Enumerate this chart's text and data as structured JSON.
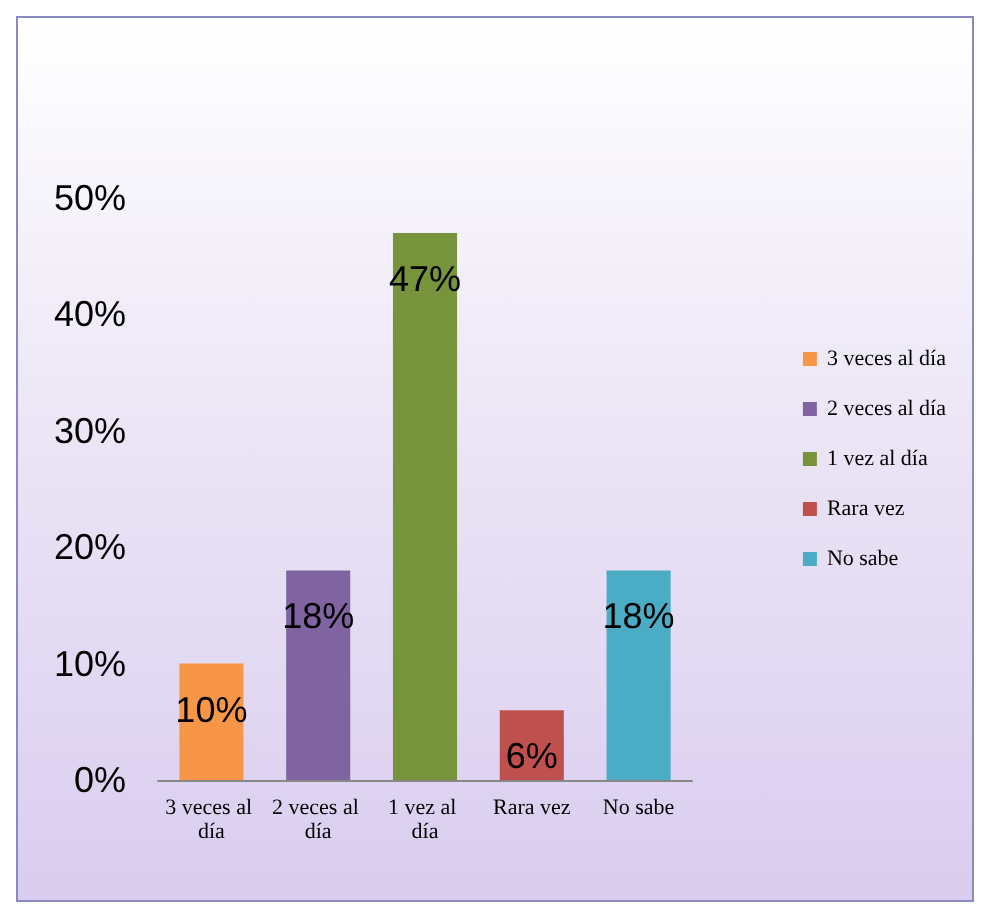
{
  "chart_data": {
    "type": "bar",
    "stacked": true,
    "categories": [
      "3 veces al día",
      "2 veces al día",
      "1 vez al día",
      "Rara vez",
      "No sabe"
    ],
    "series": [
      {
        "name": "3 veces al día",
        "color": "#f79646",
        "values": [
          10,
          null,
          null,
          null,
          null
        ],
        "value_labels": [
          "10%",
          null,
          null,
          null,
          null
        ]
      },
      {
        "name": "2 veces al día",
        "color": "#8064a2",
        "values": [
          null,
          18,
          null,
          null,
          null
        ],
        "value_labels": [
          null,
          "18%",
          null,
          null,
          null
        ]
      },
      {
        "name": "1 vez al día",
        "color": "#77933c",
        "values": [
          null,
          null,
          47,
          null,
          null
        ],
        "value_labels": [
          null,
          null,
          "47%",
          null,
          null
        ]
      },
      {
        "name": "Rara vez",
        "color": "#c0504d",
        "values": [
          null,
          null,
          null,
          6,
          null
        ],
        "value_labels": [
          null,
          null,
          null,
          "6%",
          null
        ]
      },
      {
        "name": "No sabe",
        "color": "#4bacc6",
        "values": [
          null,
          null,
          null,
          null,
          18
        ],
        "value_labels": [
          null,
          null,
          null,
          null,
          "18%"
        ]
      }
    ],
    "ylim": [
      0,
      50
    ],
    "yticks": [
      {
        "value": 0,
        "label": "0%"
      },
      {
        "value": 10,
        "label": "10%"
      },
      {
        "value": 20,
        "label": "20%"
      },
      {
        "value": 30,
        "label": "30%"
      },
      {
        "value": 40,
        "label": "40%"
      },
      {
        "value": 50,
        "label": "50%"
      }
    ],
    "grid": false,
    "legend": "right"
  }
}
